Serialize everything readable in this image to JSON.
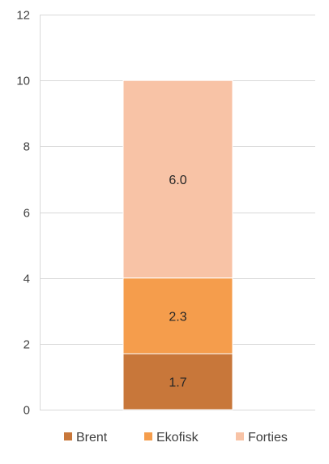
{
  "chart_data": {
    "type": "bar",
    "stacked": true,
    "categories": [
      ""
    ],
    "series": [
      {
        "name": "Brent",
        "values": [
          1.7
        ],
        "label": "1.7",
        "color": "#c8773a"
      },
      {
        "name": "Ekofisk",
        "values": [
          2.3
        ],
        "label": "2.3",
        "color": "#f59d4c"
      },
      {
        "name": "Forties",
        "values": [
          6.0
        ],
        "label": "6.0",
        "color": "#f8c3a6"
      }
    ],
    "ylim": [
      0,
      12
    ],
    "yticks": [
      0,
      2,
      4,
      6,
      8,
      10,
      12
    ],
    "ytick_labels": [
      "0",
      "2",
      "4",
      "6",
      "8",
      "10",
      "12"
    ],
    "grid": true,
    "gridline_color": "#d9d9d9",
    "legend_position": "bottom",
    "title": "",
    "xlabel": "",
    "ylabel": ""
  }
}
